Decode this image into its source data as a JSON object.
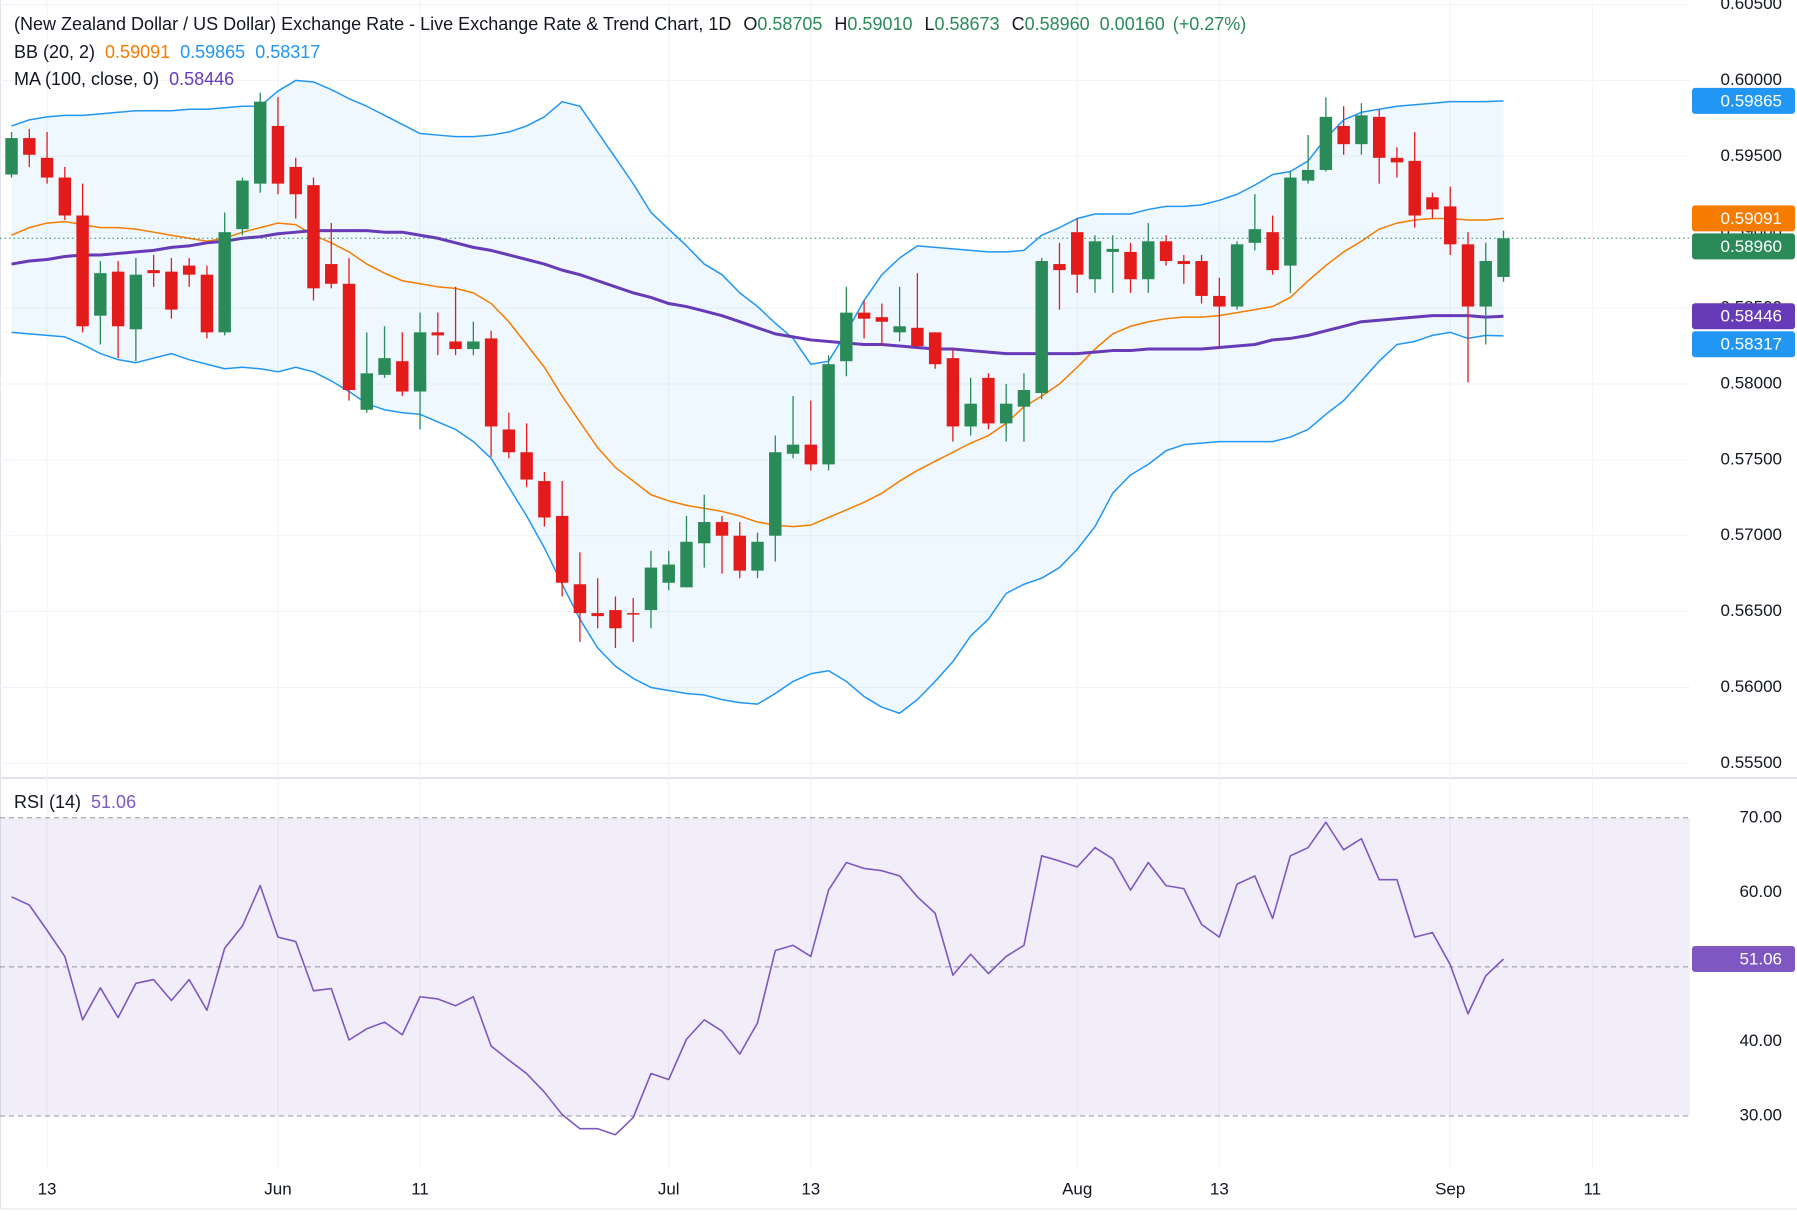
{
  "chart_data": [
    {
      "type": "candlestick",
      "title": "(New Zealand Dollar / US Dollar) Exchange Rate - Live Exchange Rate & Trend Chart, 1D",
      "ohlc_legend": [
        {
          "label": "O",
          "value": "0.58705"
        },
        {
          "label": "H",
          "value": "0.59010"
        },
        {
          "label": "L",
          "value": "0.58673"
        },
        {
          "label": "C",
          "value": "0.58960"
        }
      ],
      "change": "0.00160",
      "change_pct": "(+0.27%)",
      "close_label": "0.58960",
      "up_color": "#2a8a58",
      "down_color": "#e31b1b",
      "legend_color": "#131722",
      "xlim": [
        -0.65,
        94.5
      ],
      "xticks": [
        {
          "value": 2,
          "label": "13"
        },
        {
          "value": 15,
          "label": "Jun"
        },
        {
          "value": 23,
          "label": "11"
        },
        {
          "value": 37,
          "label": "Jul"
        },
        {
          "value": 45,
          "label": "13"
        },
        {
          "value": 60,
          "label": "Aug"
        },
        {
          "value": 68,
          "label": "13"
        },
        {
          "value": 81,
          "label": "Sep"
        },
        {
          "value": 89,
          "label": "11"
        }
      ],
      "ylim": [
        0.5541,
        0.6053
      ],
      "yticks": [
        {
          "value": 0.555,
          "label": "0.55500"
        },
        {
          "value": 0.56,
          "label": "0.56000"
        },
        {
          "value": 0.565,
          "label": "0.56500"
        },
        {
          "value": 0.57,
          "label": "0.57000"
        },
        {
          "value": 0.575,
          "label": "0.57500"
        },
        {
          "value": 0.58,
          "label": "0.58000"
        },
        {
          "value": 0.585,
          "label": "0.58500"
        },
        {
          "value": 0.59,
          "label": "0.59000"
        },
        {
          "value": 0.595,
          "label": "0.59500"
        },
        {
          "value": 0.6,
          "label": "0.60000"
        },
        {
          "value": 0.605,
          "label": "0.60500"
        }
      ],
      "grid": true,
      "open": [
        0.5938,
        0.5962,
        0.5949,
        0.5936,
        0.5911,
        0.5845,
        0.5874,
        0.5836,
        0.5875,
        0.5874,
        0.5878,
        0.5872,
        0.5834,
        0.5902,
        0.5932,
        0.597,
        0.5943,
        0.5931,
        0.5879,
        0.5866,
        0.5783,
        0.5806,
        0.5815,
        0.5795,
        0.5834,
        0.5828,
        0.5823,
        0.583,
        0.577,
        0.5755,
        0.5736,
        0.5713,
        0.5668,
        0.5649,
        0.5651,
        0.5649,
        0.5651,
        0.5669,
        0.5666,
        0.5695,
        0.5709,
        0.57,
        0.5677,
        0.57,
        0.5754,
        0.576,
        0.5747,
        0.5815,
        0.5847,
        0.5844,
        0.5834,
        0.5837,
        0.5834,
        0.5817,
        0.5772,
        0.5804,
        0.5774,
        0.5785,
        0.5794,
        0.5879,
        0.59,
        0.5869,
        0.5887,
        0.5887,
        0.5869,
        0.5894,
        0.5881,
        0.5881,
        0.5858,
        0.5851,
        0.5893,
        0.59,
        0.5878,
        0.5934,
        0.5941,
        0.597,
        0.5958,
        0.5976,
        0.5949,
        0.5947,
        0.5923,
        0.5917,
        0.5892,
        0.5851,
        0.58705
      ],
      "high": [
        0.5966,
        0.5968,
        0.5966,
        0.5943,
        0.5932,
        0.5881,
        0.5881,
        0.5883,
        0.5885,
        0.5883,
        0.5883,
        0.5878,
        0.5913,
        0.5936,
        0.5992,
        0.5989,
        0.5949,
        0.5936,
        0.5906,
        0.5883,
        0.5834,
        0.5838,
        0.5834,
        0.5847,
        0.5847,
        0.5864,
        0.5841,
        0.5835,
        0.5781,
        0.5774,
        0.5742,
        0.5736,
        0.5689,
        0.5672,
        0.566,
        0.5659,
        0.569,
        0.569,
        0.5713,
        0.5727,
        0.5713,
        0.5709,
        0.5702,
        0.5766,
        0.5792,
        0.5789,
        0.5819,
        0.5864,
        0.5855,
        0.5853,
        0.5864,
        0.5873,
        0.5834,
        0.5823,
        0.5804,
        0.5807,
        0.58,
        0.5807,
        0.5883,
        0.5893,
        0.5909,
        0.5898,
        0.5898,
        0.5893,
        0.5906,
        0.5898,
        0.5885,
        0.5885,
        0.587,
        0.5894,
        0.5925,
        0.5911,
        0.594,
        0.5964,
        0.5989,
        0.5983,
        0.5985,
        0.5981,
        0.5956,
        0.5966,
        0.5926,
        0.593,
        0.59,
        0.5893,
        0.5901
      ],
      "low": [
        0.5936,
        0.5943,
        0.5932,
        0.5908,
        0.5834,
        0.5826,
        0.5817,
        0.5815,
        0.5864,
        0.5843,
        0.5864,
        0.583,
        0.5832,
        0.5898,
        0.5926,
        0.5925,
        0.5909,
        0.5855,
        0.5863,
        0.5789,
        0.5781,
        0.5804,
        0.5792,
        0.577,
        0.5819,
        0.5819,
        0.5819,
        0.5752,
        0.5751,
        0.5732,
        0.5706,
        0.566,
        0.563,
        0.5639,
        0.5626,
        0.563,
        0.5639,
        0.5664,
        0.5666,
        0.5679,
        0.5675,
        0.5672,
        0.5672,
        0.5683,
        0.5751,
        0.5743,
        0.5743,
        0.5805,
        0.583,
        0.5825,
        0.5828,
        0.5823,
        0.581,
        0.5762,
        0.5766,
        0.577,
        0.5762,
        0.5762,
        0.579,
        0.5849,
        0.586,
        0.586,
        0.586,
        0.586,
        0.586,
        0.5878,
        0.5866,
        0.5853,
        0.5823,
        0.5849,
        0.5888,
        0.5872,
        0.586,
        0.5932,
        0.594,
        0.5951,
        0.5951,
        0.5932,
        0.5936,
        0.5903,
        0.5909,
        0.5885,
        0.5801,
        0.5826,
        0.58673
      ],
      "close": [
        0.5962,
        0.5951,
        0.5936,
        0.5911,
        0.5838,
        0.5873,
        0.5838,
        0.5872,
        0.5873,
        0.5849,
        0.5872,
        0.5834,
        0.59,
        0.5934,
        0.5986,
        0.5932,
        0.5925,
        0.5863,
        0.5866,
        0.5796,
        0.5807,
        0.5817,
        0.5795,
        0.5834,
        0.5832,
        0.5823,
        0.5828,
        0.5772,
        0.5755,
        0.5737,
        0.5712,
        0.5669,
        0.5649,
        0.5647,
        0.5639,
        0.5648,
        0.5679,
        0.5681,
        0.5696,
        0.5709,
        0.57,
        0.5677,
        0.5696,
        0.5755,
        0.576,
        0.5747,
        0.5813,
        0.5847,
        0.5843,
        0.5841,
        0.5838,
        0.5825,
        0.5813,
        0.5772,
        0.5787,
        0.5774,
        0.5787,
        0.5796,
        0.5881,
        0.5875,
        0.5872,
        0.5894,
        0.5889,
        0.5869,
        0.5894,
        0.5881,
        0.5879,
        0.5858,
        0.5851,
        0.5892,
        0.5902,
        0.5875,
        0.5936,
        0.5941,
        0.5976,
        0.5958,
        0.5977,
        0.5949,
        0.5946,
        0.5911,
        0.5915,
        0.5892,
        0.5851,
        0.5881,
        0.5896
      ],
      "indicators": [
        {
          "name": "BB (20, 2)",
          "fill": "#2196f3",
          "lines": [
            {
              "color": "#f57c00",
              "width": 1.5,
              "label": "0.59091",
              "values": [
                0.5898,
                0.5903,
                0.5906,
                0.5907,
                0.5905,
                0.5903,
                0.5903,
                0.5902,
                0.59,
                0.5898,
                0.5896,
                0.5894,
                0.5896,
                0.59,
                0.5903,
                0.5906,
                0.5905,
                0.5898,
                0.5893,
                0.5887,
                0.5879,
                0.5873,
                0.5868,
                0.5866,
                0.5864,
                0.5863,
                0.586,
                0.5853,
                0.5841,
                0.5826,
                0.5811,
                0.5792,
                0.5775,
                0.5758,
                0.5745,
                0.5736,
                0.5727,
                0.5723,
                0.572,
                0.5718,
                0.5716,
                0.5713,
                0.5709,
                0.5707,
                0.5706,
                0.5707,
                0.5712,
                0.5717,
                0.5722,
                0.5728,
                0.5736,
                0.5743,
                0.5749,
                0.5755,
                0.5761,
                0.5766,
                0.5774,
                0.5785,
                0.5792,
                0.58,
                0.5811,
                0.5823,
                0.5833,
                0.5838,
                0.5841,
                0.5843,
                0.5844,
                0.5844,
                0.5845,
                0.5847,
                0.5849,
                0.5851,
                0.5857,
                0.5868,
                0.5878,
                0.5887,
                0.5894,
                0.5902,
                0.5906,
                0.5908,
                0.5909,
                0.5909,
                0.5908,
                0.5908,
                0.59091
              ]
            },
            {
              "color": "#2196f3",
              "width": 1.5,
              "label": "0.59865",
              "values": [
                0.597,
                0.5974,
                0.5976,
                0.5977,
                0.5977,
                0.5978,
                0.5979,
                0.598,
                0.598,
                0.598,
                0.5981,
                0.5981,
                0.5982,
                0.5983,
                0.5983,
                0.5993,
                0.6,
                0.5999,
                0.5994,
                0.5988,
                0.5983,
                0.5977,
                0.5971,
                0.5965,
                0.5964,
                0.5963,
                0.5963,
                0.5964,
                0.5966,
                0.597,
                0.5976,
                0.5986,
                0.5983,
                0.5966,
                0.5949,
                0.5932,
                0.5913,
                0.5902,
                0.5891,
                0.5879,
                0.5872,
                0.586,
                0.5851,
                0.584,
                0.583,
                0.5813,
                0.5815,
                0.5834,
                0.5855,
                0.5872,
                0.5883,
                0.5891,
                0.589,
                0.5889,
                0.5888,
                0.5887,
                0.5887,
                0.5888,
                0.5898,
                0.5903,
                0.5909,
                0.5912,
                0.5912,
                0.5912,
                0.5915,
                0.5917,
                0.5917,
                0.5918,
                0.5921,
                0.5925,
                0.5931,
                0.5938,
                0.594,
                0.5947,
                0.5962,
                0.5974,
                0.5979,
                0.5981,
                0.5983,
                0.5984,
                0.5985,
                0.5986,
                0.5986,
                0.5986,
                0.59865
              ]
            },
            {
              "color": "#2196f3",
              "width": 1.5,
              "label": "0.58317",
              "values": [
                0.5834,
                0.5833,
                0.5832,
                0.5831,
                0.5826,
                0.582,
                0.5816,
                0.5814,
                0.5817,
                0.582,
                0.5816,
                0.5813,
                0.581,
                0.5811,
                0.581,
                0.5808,
                0.5811,
                0.5808,
                0.5802,
                0.5795,
                0.5787,
                0.5783,
                0.5781,
                0.578,
                0.5775,
                0.577,
                0.5762,
                0.5751,
                0.5732,
                0.5713,
                0.5692,
                0.5668,
                0.5645,
                0.5626,
                0.5614,
                0.5606,
                0.56,
                0.5598,
                0.5596,
                0.5595,
                0.5592,
                0.559,
                0.5589,
                0.5596,
                0.5604,
                0.5609,
                0.5611,
                0.5604,
                0.5594,
                0.5587,
                0.5583,
                0.5592,
                0.5604,
                0.5617,
                0.5634,
                0.5645,
                0.5662,
                0.5668,
                0.5672,
                0.5679,
                0.5691,
                0.5706,
                0.5728,
                0.574,
                0.5747,
                0.5756,
                0.576,
                0.5761,
                0.5762,
                0.5762,
                0.5762,
                0.5762,
                0.5765,
                0.577,
                0.578,
                0.5789,
                0.5802,
                0.5815,
                0.5826,
                0.5828,
                0.5832,
                0.5834,
                0.583,
                0.5832,
                0.58317
              ]
            }
          ]
        },
        {
          "name": "MA (100, close, 0)",
          "lines": [
            {
              "color": "#673ab7",
              "width": 3,
              "label": "0.58446",
              "values": [
                0.5879,
                0.5881,
                0.5882,
                0.5884,
                0.5885,
                0.5885,
                0.5886,
                0.5887,
                0.5888,
                0.589,
                0.5891,
                0.5893,
                0.5894,
                0.5896,
                0.5897,
                0.5899,
                0.59,
                0.5901,
                0.5901,
                0.5901,
                0.5901,
                0.59,
                0.59,
                0.5898,
                0.5896,
                0.5893,
                0.589,
                0.5888,
                0.5885,
                0.5882,
                0.5879,
                0.5875,
                0.5872,
                0.5868,
                0.5864,
                0.586,
                0.5857,
                0.5853,
                0.5851,
                0.5848,
                0.5845,
                0.5841,
                0.5837,
                0.5833,
                0.5831,
                0.5829,
                0.5828,
                0.5827,
                0.5826,
                0.5826,
                0.5825,
                0.5824,
                0.5823,
                0.5823,
                0.5822,
                0.5821,
                0.582,
                0.582,
                0.582,
                0.582,
                0.582,
                0.5821,
                0.5822,
                0.5822,
                0.5823,
                0.5823,
                0.5823,
                0.5823,
                0.5824,
                0.5825,
                0.5826,
                0.5829,
                0.583,
                0.5832,
                0.5835,
                0.5838,
                0.5841,
                0.5842,
                0.5843,
                0.5844,
                0.5845,
                0.5845,
                0.5845,
                0.5844,
                0.58446
              ]
            }
          ]
        }
      ]
    },
    {
      "type": "line",
      "ylim": [
        22.9,
        75.2
      ],
      "yticks": [
        {
          "value": 30,
          "label": "30.00"
        },
        {
          "value": 40,
          "label": "40.00"
        },
        {
          "value": 50,
          "label": "50.00"
        },
        {
          "value": 60,
          "label": "60.00"
        },
        {
          "value": 70,
          "label": "70.00"
        }
      ],
      "grid": false,
      "band": [
        30,
        70
      ],
      "band_color": "#7e57c2",
      "levels": [
        30,
        50,
        70
      ],
      "series": [
        {
          "name": "RSI (14)",
          "color": "#7e57c2",
          "label": "51.06",
          "values": [
            59.4,
            58.3,
            54.9,
            51.4,
            42.9,
            47.2,
            43.2,
            47.8,
            48.3,
            45.5,
            48.3,
            44.2,
            52.5,
            55.5,
            60.9,
            54.0,
            53.4,
            46.8,
            47.1,
            40.2,
            41.7,
            42.6,
            40.9,
            46.0,
            45.7,
            44.8,
            46.0,
            39.4,
            37.5,
            35.7,
            33.2,
            30.2,
            28.3,
            28.3,
            27.5,
            29.8,
            35.7,
            34.9,
            40.3,
            42.9,
            41.4,
            38.3,
            42.5,
            52.2,
            52.9,
            51.4,
            60.3,
            64.0,
            63.2,
            62.9,
            62.2,
            59.4,
            57.2,
            48.9,
            51.7,
            49.1,
            51.4,
            52.9,
            64.9,
            64.2,
            63.4,
            66.0,
            64.5,
            60.3,
            64.0,
            60.9,
            60.5,
            55.7,
            54.0,
            61.1,
            62.2,
            56.5,
            64.9,
            66.0,
            69.4,
            65.7,
            67.2,
            61.7,
            61.7,
            54.0,
            54.6,
            50.3,
            43.7,
            48.8,
            51.06
          ]
        }
      ]
    }
  ]
}
